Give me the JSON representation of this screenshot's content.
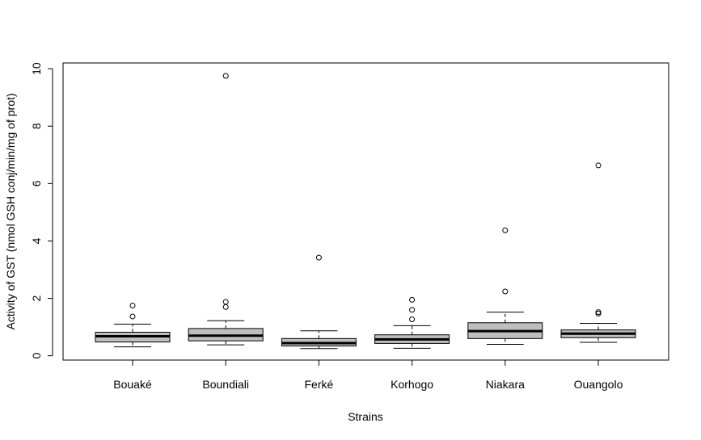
{
  "chart_data": {
    "type": "boxplot",
    "title": "",
    "xlabel": "Strains",
    "ylabel": "Activity of GST (nmol GSH conj/min/mg of prot)",
    "ylim": [
      -0.15,
      10.2
    ],
    "yticks": [
      0,
      2,
      4,
      6,
      8,
      10
    ],
    "grid": false,
    "box_fill": "#bebebe",
    "categories": [
      "Bouaké",
      "Boundiali",
      "Ferké",
      "Korhogo",
      "Niakara",
      "Ouangolo"
    ],
    "boxes": [
      {
        "name": "Bouaké",
        "whisker_low": 0.31,
        "q1": 0.48,
        "median": 0.68,
        "q3": 0.82,
        "whisker_high": 1.1,
        "outliers": [
          1.37,
          1.75
        ]
      },
      {
        "name": "Boundiali",
        "whisker_low": 0.38,
        "q1": 0.52,
        "median": 0.7,
        "q3": 0.95,
        "whisker_high": 1.22,
        "outliers": [
          1.7,
          1.88,
          9.75
        ]
      },
      {
        "name": "Ferké",
        "whisker_low": 0.25,
        "q1": 0.34,
        "median": 0.44,
        "q3": 0.6,
        "whisker_high": 0.87,
        "outliers": [
          3.42
        ]
      },
      {
        "name": "Korhogo",
        "whisker_low": 0.26,
        "q1": 0.43,
        "median": 0.57,
        "q3": 0.73,
        "whisker_high": 1.05,
        "outliers": [
          1.27,
          1.6,
          1.95
        ]
      },
      {
        "name": "Niakara",
        "whisker_low": 0.4,
        "q1": 0.6,
        "median": 0.86,
        "q3": 1.15,
        "whisker_high": 1.52,
        "outliers": [
          2.24,
          4.37
        ]
      },
      {
        "name": "Ouangolo",
        "whisker_low": 0.47,
        "q1": 0.63,
        "median": 0.77,
        "q3": 0.9,
        "whisker_high": 1.13,
        "outliers": [
          1.47,
          1.52,
          6.63
        ]
      }
    ]
  }
}
